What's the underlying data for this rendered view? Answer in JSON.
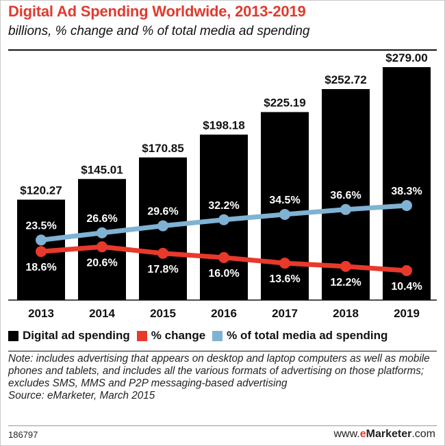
{
  "chart_data": {
    "type": "bar",
    "title": "Digital Ad Spending Worldwide, 2013-2019",
    "subtitle": "billions, % change and % of total media ad spending",
    "categories": [
      "2013",
      "2014",
      "2015",
      "2016",
      "2017",
      "2018",
      "2019"
    ],
    "series": [
      {
        "name": "Digital ad spending",
        "type": "bar",
        "color": "#000000",
        "values": [
          120.27,
          145.01,
          170.85,
          198.18,
          225.19,
          252.72,
          279.0
        ],
        "labels": [
          "$120.27",
          "$145.01",
          "$170.85",
          "$198.18",
          "$225.19",
          "$252.72",
          "$279.00"
        ]
      },
      {
        "name": "% change",
        "type": "line",
        "color": "#e8392b",
        "values": [
          18.6,
          20.6,
          17.8,
          16.0,
          13.6,
          12.2,
          10.4
        ],
        "labels": [
          "18.6%",
          "20.6%",
          "17.8%",
          "16.0%",
          "13.6%",
          "12.2%",
          "10.4%"
        ]
      },
      {
        "name": "% of total media ad spending",
        "type": "line",
        "color": "#7fb2d3",
        "values": [
          23.5,
          26.6,
          29.6,
          32.2,
          34.5,
          36.6,
          38.3
        ],
        "labels": [
          "23.5%",
          "26.6%",
          "29.6%",
          "32.2%",
          "34.5%",
          "36.6%",
          "38.3%"
        ]
      }
    ],
    "ylim": [
      0,
      279
    ],
    "legend_position": "bottom"
  },
  "note": "Note: includes advertising that appears on desktop and laptop computers as well as mobile phones and tablets, and includes all the various formats of advertising on those platforms; excludes SMS, MMS and P2P messaging-based advertising",
  "source": "Source: eMarketer, March 2015",
  "footer": {
    "chart_id": "186797",
    "brand_prefix": "www.",
    "brand_e": "e",
    "brand_name": "Marketer",
    "brand_suffix": ".com"
  }
}
